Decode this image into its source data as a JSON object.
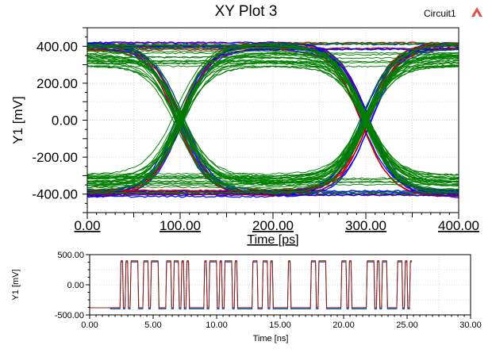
{
  "header": {
    "title": "XY Plot 3",
    "design_name": "Circuit1",
    "logo_icon": "ansys-logo-icon"
  },
  "chart_data": [
    {
      "type": "line",
      "subtype": "eye-diagram",
      "title": "XY Plot 3",
      "xlabel": "Time [ps]",
      "ylabel": "Y1 [mV]",
      "xlim": [
        0,
        400
      ],
      "ylim": [
        -500,
        500
      ],
      "x_ticks": [
        "0.00",
        "100.00",
        "200.00",
        "300.00",
        "400.00"
      ],
      "y_ticks": [
        "400.00",
        "200.00",
        "0.00",
        "-200.00",
        "-400.00"
      ],
      "grid": true,
      "unit_interval_ps": 200,
      "crossing_times_ps": [
        100,
        300
      ],
      "crossing_level_mv": 0,
      "level_high_mv": [
        290,
        420
      ],
      "level_low_mv": [
        -420,
        -290
      ],
      "series_colors": [
        "#0000ff",
        "#c00000",
        "#008000"
      ]
    },
    {
      "type": "line",
      "subtype": "transient-waveform",
      "xlabel": "Time [ns]",
      "ylabel": "Y1 [mV]",
      "xlim": [
        0,
        30
      ],
      "ylim": [
        -500,
        500
      ],
      "x_ticks": [
        "0.00",
        "5.00",
        "10.00",
        "15.00",
        "20.00",
        "25.00",
        "30.00"
      ],
      "y_ticks": [
        "500.00",
        "0.00",
        "-500.00"
      ],
      "grid": true,
      "idle_level_mv": -380,
      "data_start_ns": 1.6,
      "data_end_ns": 25.5,
      "level_high_mv": 390,
      "level_low_mv": -390,
      "series_colors": [
        "#0000ff",
        "#008000",
        "#c00000"
      ]
    }
  ]
}
